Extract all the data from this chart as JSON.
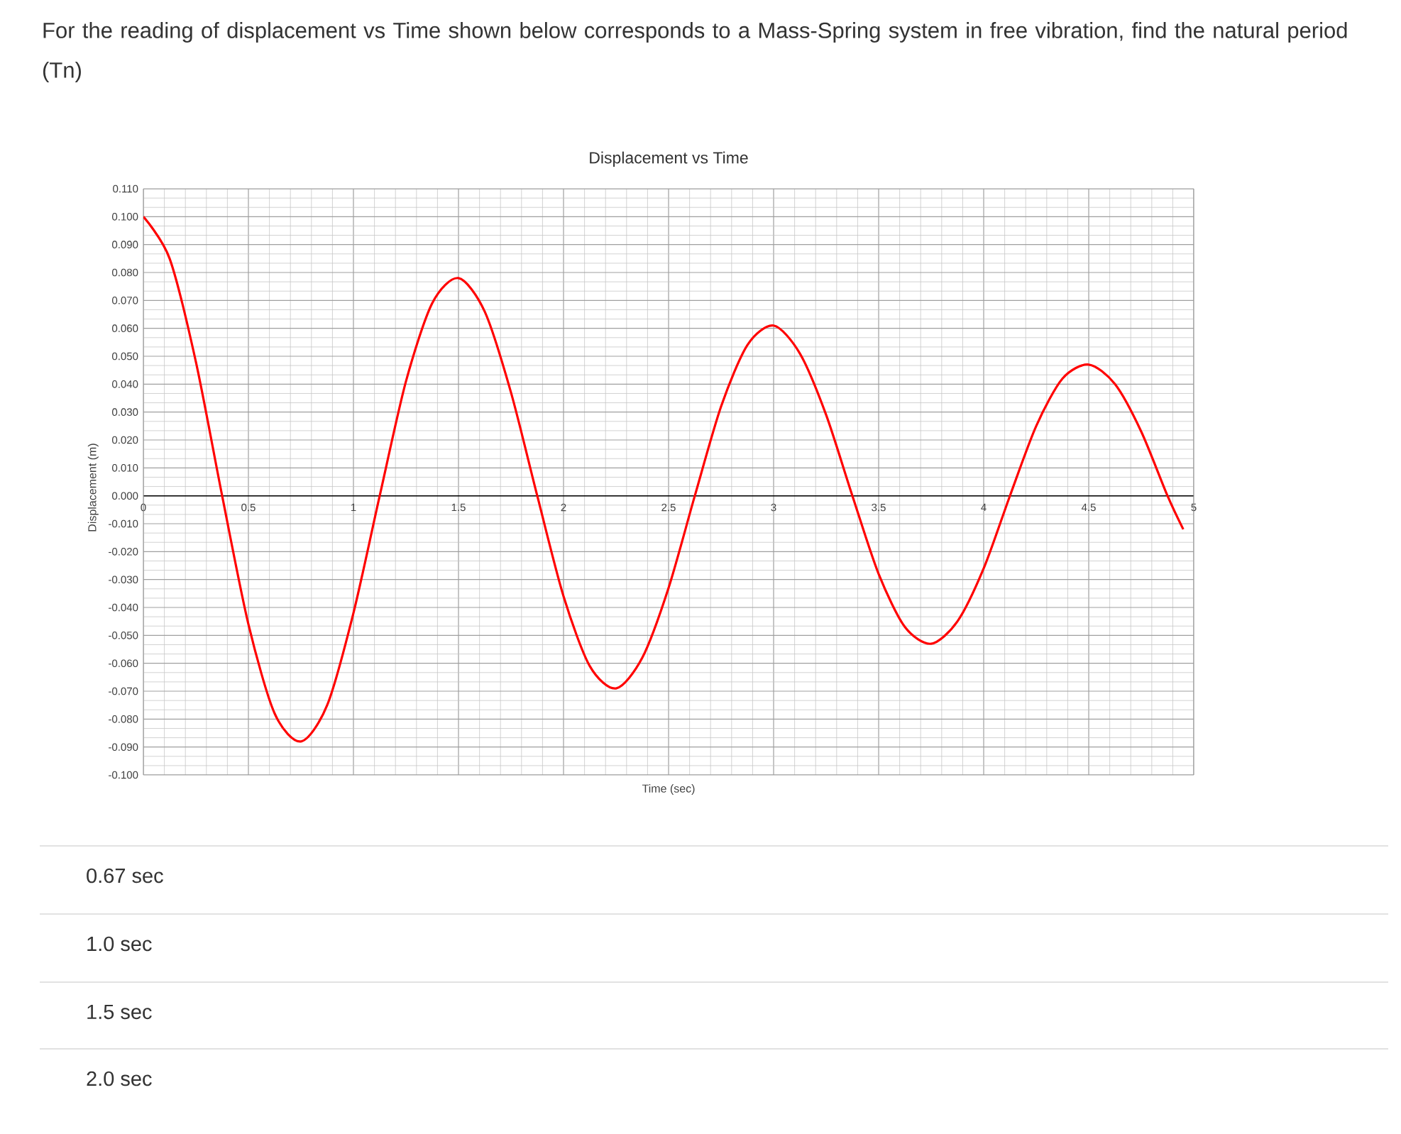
{
  "chart_data": {
    "type": "line",
    "title": "Displacement vs Time",
    "xlabel": "Time (sec)",
    "ylabel": "Displacement (m)",
    "annotations": [
      "For the reading of displacement vs Time shown below corresponds to a Mass-Spring system in free vibration, find the natural period (Tn)",
      "0.67 sec",
      "1.0 sec",
      "1.5 sec",
      "2.0 sec"
    ],
    "x": [
      0,
      0.125,
      0.25,
      0.375,
      0.5,
      0.625,
      0.75,
      0.875,
      1.0,
      1.125,
      1.25,
      1.375,
      1.5,
      1.625,
      1.75,
      1.875,
      2.0,
      2.125,
      2.25,
      2.375,
      2.5,
      2.625,
      2.75,
      2.875,
      3.0,
      3.125,
      3.25,
      3.375,
      3.5,
      3.625,
      3.75,
      3.875,
      4.0,
      4.125,
      4.25,
      4.375,
      4.5,
      4.625,
      4.75,
      4.875,
      4.95
    ],
    "values": [
      0.1,
      0.085,
      0.048,
      0.0,
      -0.046,
      -0.078,
      -0.088,
      -0.075,
      -0.042,
      0.0,
      0.041,
      0.069,
      0.078,
      0.066,
      0.037,
      0.0,
      -0.036,
      -0.061,
      -0.069,
      -0.058,
      -0.033,
      0.0,
      0.032,
      0.054,
      0.061,
      0.051,
      0.029,
      0.0,
      -0.028,
      -0.047,
      -0.053,
      -0.045,
      -0.026,
      0.0,
      0.025,
      0.042,
      0.047,
      0.04,
      0.023,
      0.0,
      -0.012
    ],
    "color": "#ff0000",
    "xlim": [
      0,
      5
    ],
    "ylim": [
      -0.1,
      0.11
    ],
    "xticks": [
      0,
      0.5,
      1,
      1.5,
      2,
      2.5,
      3,
      3.5,
      4,
      4.5,
      5
    ],
    "yticks": [
      {
        "value": 0.11,
        "label": "0.110"
      },
      {
        "value": 0.1,
        "label": "0.100"
      },
      {
        "value": 0.09,
        "label": "0.090"
      },
      {
        "value": 0.08,
        "label": "0.080"
      },
      {
        "value": 0.07,
        "label": "0.070"
      },
      {
        "value": 0.06,
        "label": "0.060"
      },
      {
        "value": 0.05,
        "label": "0.050"
      },
      {
        "value": 0.04,
        "label": "0.040"
      },
      {
        "value": 0.03,
        "label": "0.030"
      },
      {
        "value": 0.02,
        "label": "0.020"
      },
      {
        "value": 0.01,
        "label": "0.010"
      },
      {
        "value": 0,
        "label": "0.000"
      },
      {
        "value": -0.01,
        "label": "-0.010"
      },
      {
        "value": -0.02,
        "label": "-0.020"
      },
      {
        "value": -0.03,
        "label": "-0.030"
      },
      {
        "value": -0.04,
        "label": "-0.040"
      },
      {
        "value": -0.05,
        "label": "-0.050"
      },
      {
        "value": -0.06,
        "label": "-0.060"
      },
      {
        "value": -0.07,
        "label": "-0.070"
      },
      {
        "value": -0.08,
        "label": "-0.080"
      },
      {
        "value": -0.09,
        "label": "-0.090"
      },
      {
        "value": -0.1,
        "label": "-0.100"
      }
    ],
    "grid": true
  }
}
